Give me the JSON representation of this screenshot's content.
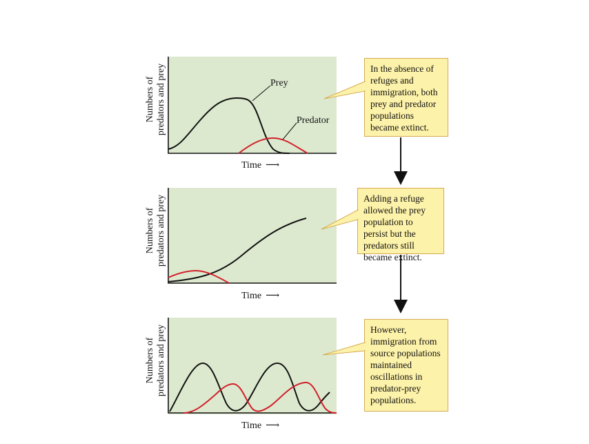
{
  "panels": [
    {
      "ylabel_line1": "Numbers of",
      "ylabel_line2": "predators and prey",
      "xlabel": "Time",
      "prey_label": "Prey",
      "predator_label": "Predator",
      "callout": "In the absence of refuges and immigration, both prey and predator populations became extinct."
    },
    {
      "ylabel_line1": "Numbers of",
      "ylabel_line2": "predators and prey",
      "xlabel": "Time",
      "callout": "Adding a refuge allowed the prey population to persist but the predators still became extinct."
    },
    {
      "ylabel_line1": "Numbers of",
      "ylabel_line2": "predators and prey",
      "xlabel": "Time",
      "callout": "However, immigration from source populations maintained oscillations in predator-prey populations."
    }
  ],
  "colors": {
    "plot_background": "#dde9cf",
    "prey_curve": "#111111",
    "predator_curve": "#d0202a",
    "callout_fill": "#fdf2a9",
    "callout_border": "#d4aa53"
  },
  "icons": [
    "right-arrow-icon",
    "down-arrow-icon"
  ]
}
